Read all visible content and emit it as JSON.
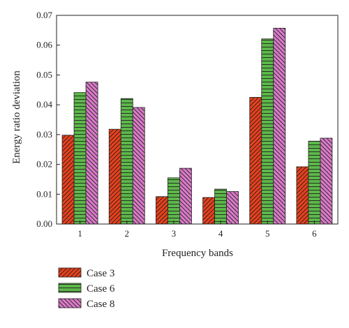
{
  "chart_data": {
    "type": "bar",
    "xlabel": "Frequency bands",
    "ylabel": "Energy ratio deviation",
    "categories": [
      "1",
      "2",
      "3",
      "4",
      "5",
      "6"
    ],
    "ylim": [
      0,
      0.07
    ],
    "yticks": [
      "0.00",
      "0.01",
      "0.02",
      "0.03",
      "0.04",
      "0.05",
      "0.06",
      "0.07"
    ],
    "series": [
      {
        "name": "Case 3",
        "color": "#e8401c",
        "pattern": "diagonal-left",
        "values": [
          0.0298,
          0.0318,
          0.0092,
          0.0089,
          0.0425,
          0.0192
        ]
      },
      {
        "name": "Case 6",
        "color": "#5cb84a",
        "pattern": "horizontal",
        "values": [
          0.0441,
          0.0421,
          0.0155,
          0.0117,
          0.0621,
          0.0278
        ]
      },
      {
        "name": "Case 8",
        "color": "#d97ac8",
        "pattern": "diagonal-right",
        "values": [
          0.0476,
          0.0391,
          0.0187,
          0.0109,
          0.0657,
          0.0288
        ]
      }
    ],
    "legend_position": "bottom-left"
  }
}
